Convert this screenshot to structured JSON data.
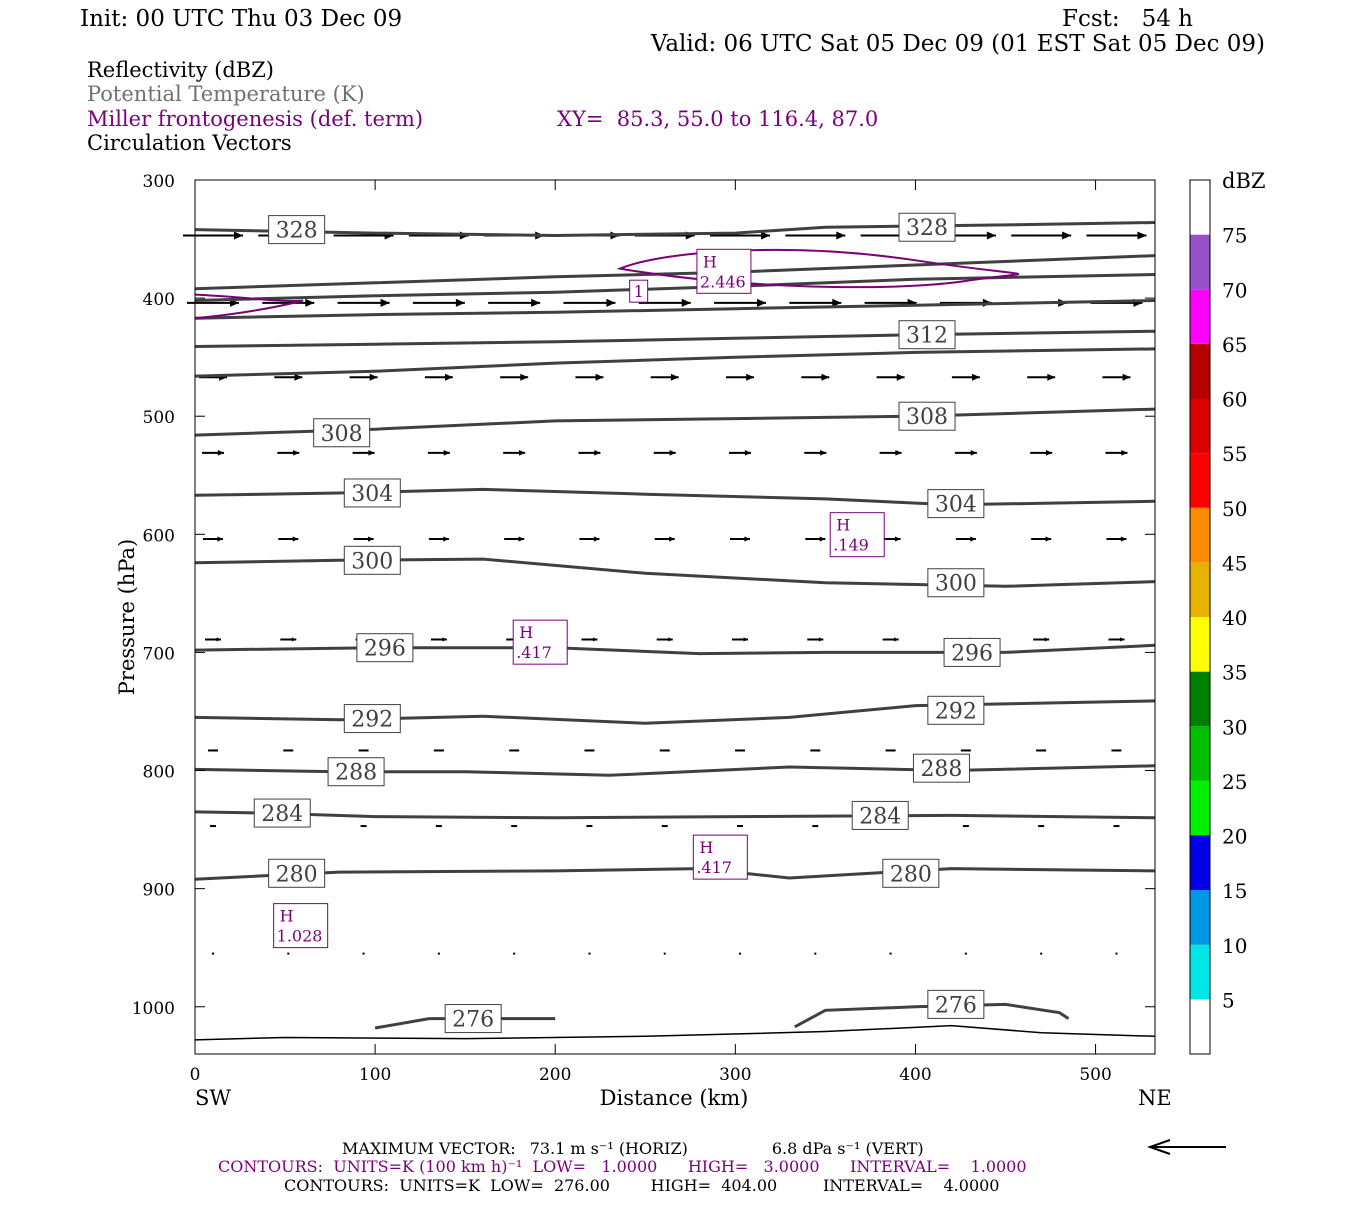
{
  "header": {
    "init": "Init: 00 UTC Thu 03 Dec 09",
    "fcst": "Fcst:   54 h",
    "valid": "Valid: 06 UTC Sat 05 Dec 09 (01 EST Sat 05 Dec 09)",
    "fields": [
      {
        "label": "Reflectivity (dBZ)",
        "color": "#000000"
      },
      {
        "label": "Potential Temperature (K)",
        "color": "#707070"
      },
      {
        "label": "Miller frontogenesis (def. term)",
        "color": "#7a007a"
      },
      {
        "label": "Circulation Vectors",
        "color": "#000000"
      }
    ],
    "xy": "XY=  85.3, 55.0 to 116.4, 87.0"
  },
  "footer": {
    "maxvec_label": "MAXIMUM VECTOR:",
    "maxvec_horiz": "73.1 m s⁻¹ (HORIZ)",
    "maxvec_vert": "6.8 dPa s⁻¹ (VERT)",
    "frontogenesis_contours": "CONTOURS:  UNITS=K (100 km h)⁻¹  LOW=   1.0000      HIGH=   3.0000      INTERVAL=    1.0000",
    "theta_contours": "CONTOURS:  UNITS=K  LOW=  276.00        HIGH=  404.00         INTERVAL=    4.0000"
  },
  "colorbar": {
    "unit": "dBZ",
    "levels": [
      "5",
      "10",
      "15",
      "20",
      "25",
      "30",
      "35",
      "40",
      "45",
      "50",
      "55",
      "60",
      "65",
      "70",
      "75"
    ],
    "colors": [
      "#ffffff",
      "#00e6e6",
      "#0096e6",
      "#0000e6",
      "#00f000",
      "#00c000",
      "#008000",
      "#ffff00",
      "#e6b400",
      "#ff8c00",
      "#ff0000",
      "#dc0000",
      "#b40000",
      "#ff00ff",
      "#9650c8",
      "#ffffff"
    ]
  },
  "chart_data": {
    "type": "cross-section",
    "title": "",
    "xlabel": "Distance (km)",
    "ylabel": "Pressure (hPa)",
    "xlim": [
      0,
      533
    ],
    "ylim": [
      1040,
      300
    ],
    "x_ticks": [
      "0",
      "100",
      "200",
      "300",
      "400",
      "500"
    ],
    "y_ticks": [
      "300",
      "400",
      "500",
      "600",
      "700",
      "800",
      "900",
      "1000"
    ],
    "x_end_labels": {
      "left": "SW",
      "right": "NE"
    },
    "theta_contours": [
      {
        "value": 328,
        "label": "328",
        "points": [
          [
            0,
            342
          ],
          [
            100,
            345
          ],
          [
            200,
            347
          ],
          [
            300,
            345
          ],
          [
            350,
            340
          ],
          [
            450,
            338
          ],
          [
            533,
            336
          ]
        ],
        "labels_at": [
          [
            42,
            342
          ],
          [
            392,
            340
          ]
        ]
      },
      {
        "value": 324,
        "label": "",
        "points": [
          [
            0,
            392
          ],
          [
            100,
            387
          ],
          [
            200,
            382
          ],
          [
            300,
            378
          ],
          [
            400,
            372
          ],
          [
            533,
            364
          ]
        ],
        "labels_at": []
      },
      {
        "value": 320,
        "label": "",
        "points": [
          [
            0,
            402
          ],
          [
            100,
            398
          ],
          [
            200,
            395
          ],
          [
            300,
            390
          ],
          [
            400,
            384
          ],
          [
            533,
            380
          ]
        ],
        "labels_at": []
      },
      {
        "value": 316,
        "label": "",
        "points": [
          [
            0,
            417
          ],
          [
            100,
            414
          ],
          [
            200,
            412
          ],
          [
            300,
            409
          ],
          [
            400,
            406
          ],
          [
            533,
            402
          ]
        ],
        "labels_at": []
      },
      {
        "value": 312,
        "label": "312",
        "points": [
          [
            0,
            441
          ],
          [
            100,
            439
          ],
          [
            200,
            437
          ],
          [
            300,
            434
          ],
          [
            400,
            431
          ],
          [
            533,
            428
          ]
        ],
        "labels_at": [
          [
            392,
            431
          ]
        ]
      },
      {
        "value": 312,
        "label": "",
        "points": [
          [
            0,
            466
          ],
          [
            100,
            462
          ],
          [
            200,
            455
          ],
          [
            300,
            450
          ],
          [
            400,
            446
          ],
          [
            533,
            443
          ]
        ],
        "labels_at": []
      },
      {
        "value": 308,
        "label": "308",
        "points": [
          [
            0,
            516
          ],
          [
            100,
            511
          ],
          [
            200,
            504
          ],
          [
            300,
            502
          ],
          [
            400,
            500
          ],
          [
            533,
            494
          ]
        ],
        "labels_at": [
          [
            67,
            514
          ],
          [
            392,
            500
          ]
        ]
      },
      {
        "value": 304,
        "label": "304",
        "points": [
          [
            0,
            567
          ],
          [
            80,
            565
          ],
          [
            160,
            562
          ],
          [
            250,
            566
          ],
          [
            350,
            570
          ],
          [
            420,
            575
          ],
          [
            533,
            572
          ]
        ],
        "labels_at": [
          [
            84,
            565
          ],
          [
            408,
            574
          ]
        ]
      },
      {
        "value": 300,
        "label": "300",
        "points": [
          [
            0,
            624
          ],
          [
            80,
            622
          ],
          [
            160,
            621
          ],
          [
            250,
            633
          ],
          [
            350,
            641
          ],
          [
            450,
            644
          ],
          [
            533,
            640
          ]
        ],
        "labels_at": [
          [
            84,
            622
          ],
          [
            408,
            641
          ]
        ]
      },
      {
        "value": 296,
        "label": "296",
        "points": [
          [
            0,
            698
          ],
          [
            100,
            696
          ],
          [
            200,
            696
          ],
          [
            280,
            701
          ],
          [
            350,
            700
          ],
          [
            450,
            700
          ],
          [
            533,
            694
          ]
        ],
        "labels_at": [
          [
            91,
            696
          ],
          [
            417,
            700
          ]
        ]
      },
      {
        "value": 292,
        "label": "292",
        "points": [
          [
            0,
            755
          ],
          [
            80,
            757
          ],
          [
            160,
            754
          ],
          [
            250,
            760
          ],
          [
            330,
            755
          ],
          [
            400,
            745
          ],
          [
            533,
            741
          ]
        ],
        "labels_at": [
          [
            84,
            756
          ],
          [
            408,
            749
          ]
        ]
      },
      {
        "value": 288,
        "label": "288",
        "points": [
          [
            0,
            799
          ],
          [
            80,
            801
          ],
          [
            150,
            801
          ],
          [
            230,
            804
          ],
          [
            330,
            797
          ],
          [
            420,
            800
          ],
          [
            533,
            796
          ]
        ],
        "labels_at": [
          [
            75,
            801
          ],
          [
            400,
            798
          ]
        ]
      },
      {
        "value": 284,
        "label": "284",
        "points": [
          [
            0,
            835
          ],
          [
            40,
            836
          ],
          [
            100,
            839
          ],
          [
            200,
            840
          ],
          [
            300,
            839
          ],
          [
            420,
            838
          ],
          [
            533,
            840
          ]
        ],
        "labels_at": [
          [
            34,
            836
          ],
          [
            366,
            838
          ]
        ]
      },
      {
        "value": 280,
        "label": "280",
        "points": [
          [
            0,
            892
          ],
          [
            80,
            886
          ],
          [
            200,
            885
          ],
          [
            280,
            883
          ],
          [
            330,
            891
          ],
          [
            420,
            883
          ],
          [
            533,
            885
          ]
        ],
        "labels_at": [
          [
            42,
            887
          ],
          [
            383,
            887
          ]
        ]
      },
      {
        "value": 276,
        "label": "276",
        "points": [
          [
            100,
            1018
          ],
          [
            130,
            1010
          ],
          [
            200,
            1010
          ]
        ],
        "labels_at": [
          [
            140,
            1010
          ]
        ]
      },
      {
        "value": 276,
        "label": "276",
        "points": [
          [
            333,
            1017
          ],
          [
            350,
            1003
          ],
          [
            400,
            1000
          ],
          [
            450,
            998
          ],
          [
            480,
            1005
          ],
          [
            485,
            1010
          ]
        ],
        "labels_at": [
          [
            408,
            998
          ]
        ]
      }
    ],
    "frontogenesis_maxima": [
      {
        "label": "H",
        "value": "2.446",
        "x": 292,
        "p": 379
      },
      {
        "label": "H",
        "value": ".149",
        "x": 366,
        "p": 602
      },
      {
        "label": "H",
        "value": ".417",
        "x": 190,
        "p": 693
      },
      {
        "label": "H",
        "value": ".417",
        "x": 290,
        "p": 875
      },
      {
        "label": "H",
        "value": "1.028",
        "x": 57,
        "p": 933
      }
    ],
    "frontogenesis_contour_labels": [
      {
        "text": "1",
        "x": 243,
        "p": 395
      }
    ],
    "vector_levels": [
      {
        "p": 347,
        "dx": 60
      },
      {
        "p": 404,
        "dx": 52
      },
      {
        "p": 467,
        "dx": 28
      },
      {
        "p": 531,
        "dx": 22
      },
      {
        "p": 604,
        "dx": 20
      },
      {
        "p": 689,
        "dx": 16
      },
      {
        "p": 783,
        "dx": 10
      },
      {
        "p": 847,
        "dx": 3
      },
      {
        "p": 955,
        "dx": 1
      }
    ],
    "reference_vector": {
      "direction": "west"
    }
  }
}
